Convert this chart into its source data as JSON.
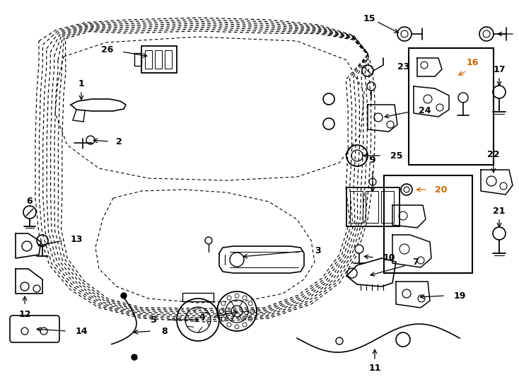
{
  "bg_color": "#ffffff",
  "line_color": "#000000",
  "orange_color": "#cc6600",
  "fig_w": 7.34,
  "fig_h": 5.4,
  "dpi": 100,
  "orange_labels": [
    "16",
    "20"
  ]
}
